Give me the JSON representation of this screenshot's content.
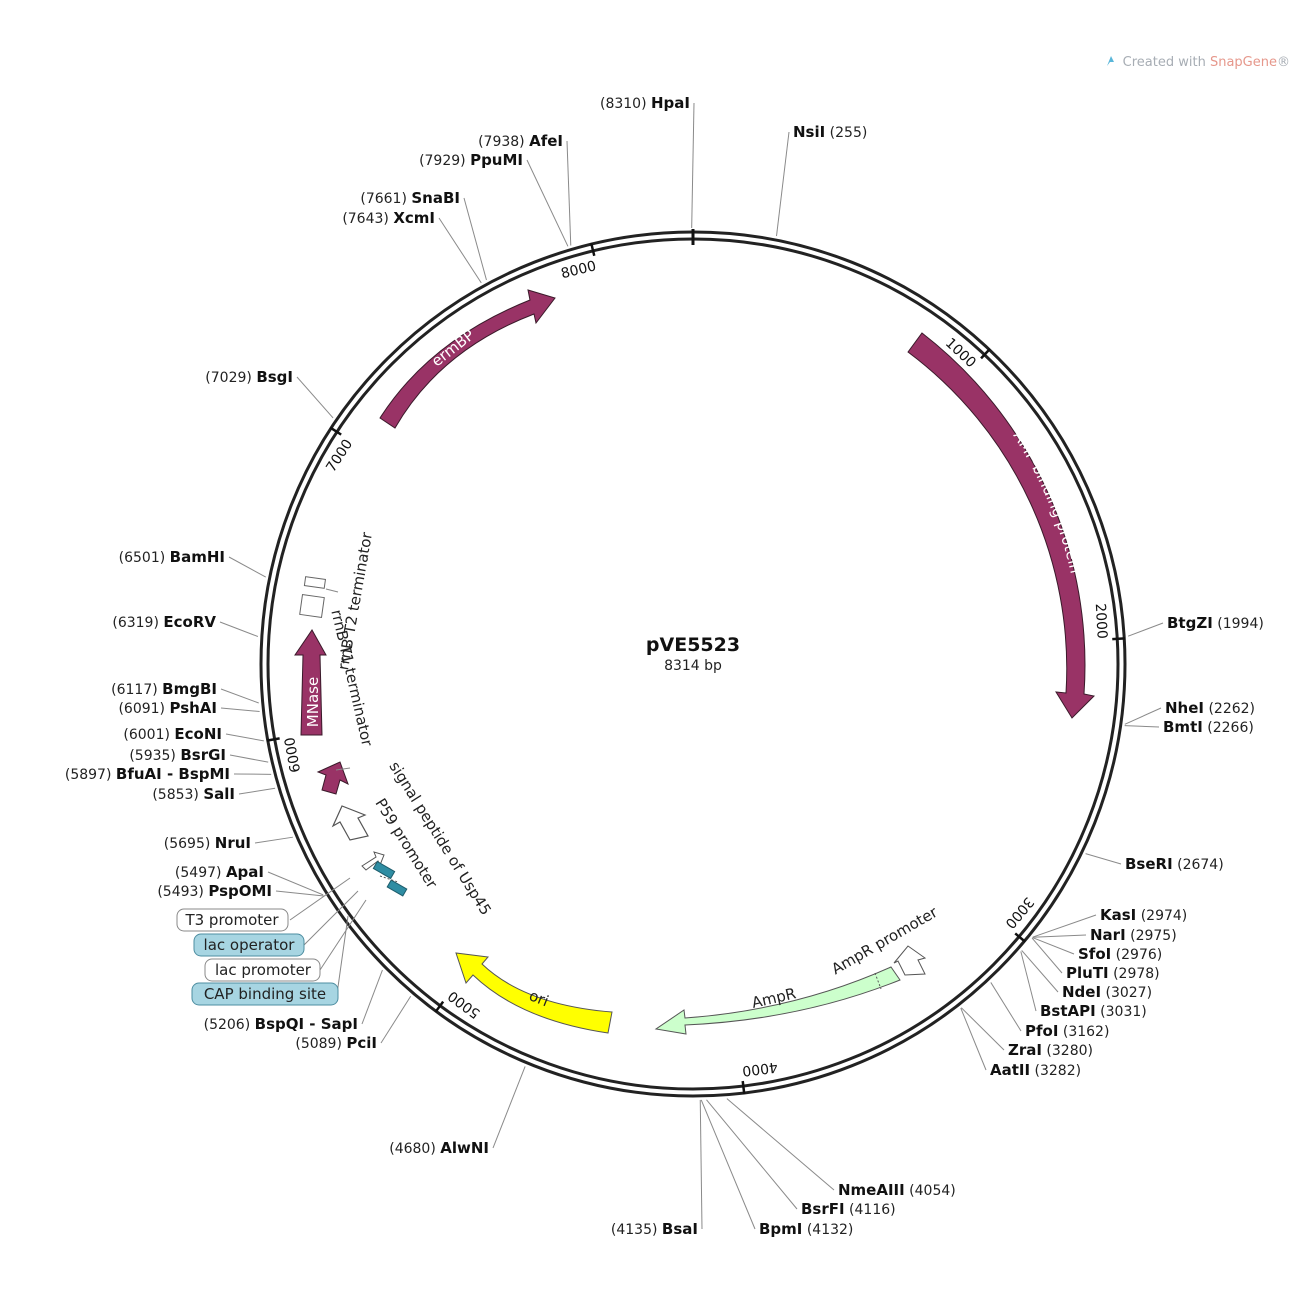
{
  "plasmid": {
    "name": "pVE5523",
    "size_label": "8314 bp",
    "length": 8314
  },
  "watermark": {
    "prefix": "Created with ",
    "brand": "SnapGene",
    "suffix": "®"
  },
  "ticks": [
    {
      "pos": 1000,
      "label": "1000"
    },
    {
      "pos": 2000,
      "label": "2000"
    },
    {
      "pos": 3000,
      "label": "3000"
    },
    {
      "pos": 4000,
      "label": "4000"
    },
    {
      "pos": 5000,
      "label": "5000"
    },
    {
      "pos": 6000,
      "label": "6000"
    },
    {
      "pos": 7000,
      "label": "7000"
    },
    {
      "pos": 8000,
      "label": "8000"
    }
  ],
  "sites": [
    {
      "name": "HpaI",
      "num": "(8310)",
      "pos": 8310,
      "side": "left"
    },
    {
      "name": "NsiI",
      "num": "(255)",
      "pos": 255,
      "side": "right"
    },
    {
      "name": "AfeI",
      "num": "(7938)",
      "pos": 7938,
      "side": "left"
    },
    {
      "name": "PpuMI",
      "num": "(7929)",
      "pos": 7929,
      "side": "left"
    },
    {
      "name": "SnaBI",
      "num": "(7661)",
      "pos": 7661,
      "side": "left"
    },
    {
      "name": "XcmI",
      "num": "(7643)",
      "pos": 7643,
      "side": "left"
    },
    {
      "name": "BsgI",
      "num": "(7029)",
      "pos": 7029,
      "side": "left"
    },
    {
      "name": "BamHI",
      "num": "(6501)",
      "pos": 6501,
      "side": "left"
    },
    {
      "name": "EcoRV",
      "num": "(6319)",
      "pos": 6319,
      "side": "left"
    },
    {
      "name": "BmgBI",
      "num": "(6117)",
      "pos": 6117,
      "side": "left"
    },
    {
      "name": "PshAI",
      "num": "(6091)",
      "pos": 6091,
      "side": "left"
    },
    {
      "name": "EcoNI",
      "num": "(6001)",
      "pos": 6001,
      "side": "left"
    },
    {
      "name": "BsrGI",
      "num": "(5935)",
      "pos": 5935,
      "side": "left"
    },
    {
      "name": "BfuAI - BspMI",
      "num": "(5897)",
      "pos": 5897,
      "side": "left"
    },
    {
      "name": "SalI",
      "num": "(5853)",
      "pos": 5853,
      "side": "left"
    },
    {
      "name": "NruI",
      "num": "(5695)",
      "pos": 5695,
      "side": "left"
    },
    {
      "name": "ApaI",
      "num": "(5497)",
      "pos": 5497,
      "side": "left"
    },
    {
      "name": "PspOMI",
      "num": "(5493)",
      "pos": 5493,
      "side": "left"
    },
    {
      "name": "BspQI - SapI",
      "num": "(5206)",
      "pos": 5206,
      "side": "left"
    },
    {
      "name": "PciI",
      "num": "(5089)",
      "pos": 5089,
      "side": "left"
    },
    {
      "name": "AlwNI",
      "num": "(4680)",
      "pos": 4680,
      "side": "left"
    },
    {
      "name": "BsaI",
      "num": "(4135)",
      "pos": 4135,
      "side": "left"
    },
    {
      "name": "BpmI",
      "num": "(4132)",
      "pos": 4132,
      "side": "right"
    },
    {
      "name": "BsrFI",
      "num": "(4116)",
      "pos": 4116,
      "side": "right"
    },
    {
      "name": "NmeAIII",
      "num": "(4054)",
      "pos": 4054,
      "side": "right"
    },
    {
      "name": "BtgZI",
      "num": "(1994)",
      "pos": 1994,
      "side": "right"
    },
    {
      "name": "NheI",
      "num": "(2262)",
      "pos": 2262,
      "side": "right"
    },
    {
      "name": "BmtI",
      "num": "(2266)",
      "pos": 2266,
      "side": "right"
    },
    {
      "name": "BseRI",
      "num": "(2674)",
      "pos": 2674,
      "side": "right"
    },
    {
      "name": "KasI",
      "num": "(2974)",
      "pos": 2974,
      "side": "right"
    },
    {
      "name": "NarI",
      "num": "(2975)",
      "pos": 2975,
      "side": "right"
    },
    {
      "name": "SfoI",
      "num": "(2976)",
      "pos": 2976,
      "side": "right"
    },
    {
      "name": "PluTI",
      "num": "(2978)",
      "pos": 2978,
      "side": "right"
    },
    {
      "name": "NdeI",
      "num": "(3027)",
      "pos": 3027,
      "side": "right"
    },
    {
      "name": "BstAPI",
      "num": "(3031)",
      "pos": 3031,
      "side": "right"
    },
    {
      "name": "PfoI",
      "num": "(3162)",
      "pos": 3162,
      "side": "right"
    },
    {
      "name": "ZraI",
      "num": "(3280)",
      "pos": 3280,
      "side": "right"
    },
    {
      "name": "AatII",
      "num": "(3282)",
      "pos": 3282,
      "side": "right"
    }
  ],
  "features": {
    "ermBP": {
      "label": "ermBP",
      "color": "#993366"
    },
    "amp_binding": {
      "label": "AMP-binding protein",
      "color": "#993366"
    },
    "mnase": {
      "label": "MNase",
      "color": "#993366"
    },
    "ori": {
      "label": "ori",
      "color": "#ffff00"
    },
    "ampr": {
      "label": "AmpR",
      "color": "#ccffcc"
    },
    "ampr_promoter": {
      "label": "AmpR promoter"
    },
    "rrnb_t2": {
      "label": "rrnB T2 terminator"
    },
    "rrnb_t1": {
      "label": "rrnB T1 terminator"
    },
    "signal_peptide": {
      "label": "signal peptide of Usp45"
    },
    "p59": {
      "label": "P59 promoter"
    },
    "t3": {
      "label": "T3 promoter"
    },
    "lac_operator": {
      "label": "lac operator"
    },
    "lac_promoter": {
      "label": "lac promoter"
    },
    "cap_site": {
      "label": "CAP binding site"
    }
  },
  "colors": {
    "backbone": "#222222",
    "gene": "#993366",
    "ori": "#ffff00",
    "ampr": "#ccffcc",
    "lac_box": "#a7d5e2",
    "lac_bar": "#2f8da3"
  }
}
